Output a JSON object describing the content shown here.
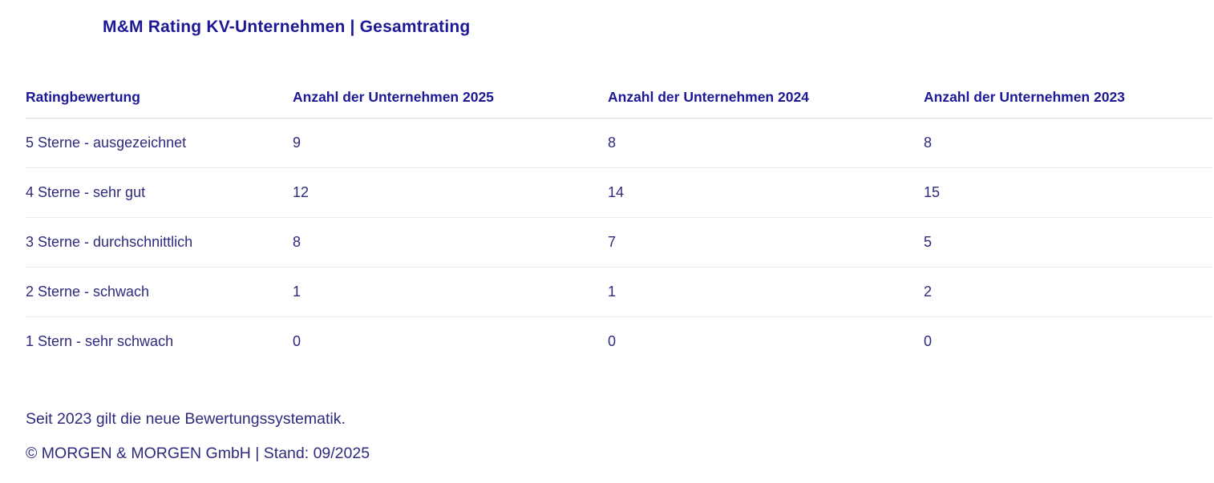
{
  "page": {
    "title": "M&M Rating KV-Unternehmen | Gesamtrating"
  },
  "chart_data": {
    "type": "table",
    "title": "M&M Rating KV-Unternehmen | Gesamtrating",
    "columns": [
      "Ratingbewertung",
      "Anzahl der Unternehmen 2025",
      "Anzahl der Unternehmen 2024",
      "Anzahl der Unternehmen 2023"
    ],
    "rows": [
      [
        "5 Sterne - ausgezeichnet",
        9,
        8,
        8
      ],
      [
        "4 Sterne - sehr gut",
        12,
        14,
        15
      ],
      [
        "3 Sterne - durchschnittlich",
        8,
        7,
        5
      ],
      [
        "2 Sterne - schwach",
        1,
        1,
        2
      ],
      [
        "1 Stern - sehr schwach",
        0,
        0,
        0
      ]
    ],
    "notes": [
      "Seit 2023 gilt die neue Bewertungssystematik.",
      "© MORGEN & MORGEN GmbH | Stand: 09/2025"
    ]
  },
  "footer": {
    "note": "Seit 2023 gilt die neue Bewertungssystematik.",
    "copyright": "© MORGEN & MORGEN GmbH | Stand: 09/2025"
  },
  "colors": {
    "heading": "#1d1896",
    "body_text": "#2e2b7c",
    "header_divider": "#d7dcdf",
    "row_divider": "#e9eaeb",
    "background": "#ffffff"
  }
}
